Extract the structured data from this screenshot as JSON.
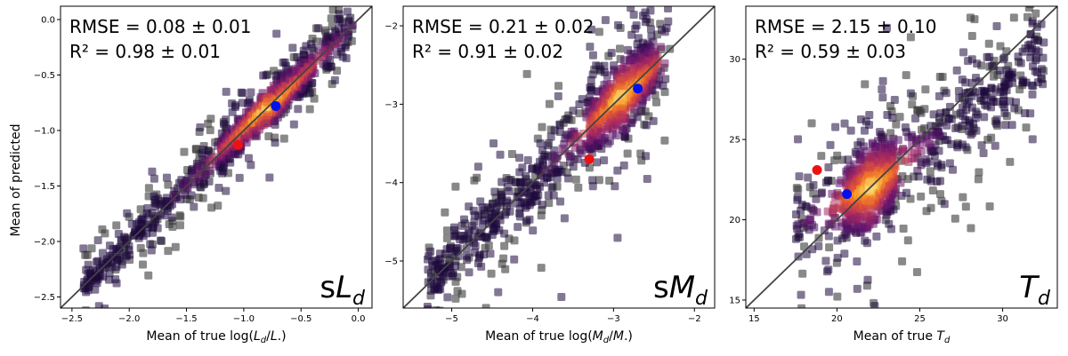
{
  "figure": {
    "ylabel": "Mean of predicted"
  },
  "chart_data": [
    {
      "type": "scatter",
      "panel_label": "sL",
      "panel_sub": "d",
      "xlabel_prefix": "Mean of true log(",
      "xlabel_math": "L",
      "xlabel_sub": "d",
      "xlabel_rest": "/L",
      "xlabel_suffix": ".)",
      "ylabel": "Mean of predicted",
      "xlim": [
        -2.6,
        0.12
      ],
      "ylim": [
        -2.6,
        0.12
      ],
      "xticks": [
        -2.5,
        -2.0,
        -1.5,
        -1.0,
        -0.5,
        0.0
      ],
      "xtick_labels": [
        "−2.5",
        "−2.0",
        "−1.5",
        "−1.0",
        "−0.5",
        "0.0"
      ],
      "yticks": [
        -2.5,
        -2.0,
        -1.5,
        -1.0,
        -0.5,
        0.0
      ],
      "ytick_labels": [
        "−2.5",
        "−2.0",
        "−1.5",
        "−1.0",
        "−0.5",
        "0.0"
      ],
      "rmse_text": "RMSE = 0.08 ± 0.01",
      "r2_text": "R² = 0.98 ± 0.01",
      "diagonal": "y = x",
      "cloud": {
        "x_range": [
          -2.4,
          -0.05
        ],
        "y_center_offset": 0.0,
        "spread": 0.08,
        "dense_x": [
          -1.2,
          -0.4
        ]
      },
      "highlight": [
        {
          "name": "blue",
          "color": "#0011ee",
          "x": -0.72,
          "y": -0.78
        },
        {
          "name": "red",
          "color": "#ee1111",
          "x": -1.05,
          "y": -1.13
        }
      ]
    },
    {
      "type": "scatter",
      "panel_label": "sM",
      "panel_sub": "d",
      "xlabel_prefix": "Mean of true log(",
      "xlabel_math": "M",
      "xlabel_sub": "d",
      "xlabel_rest": "/M",
      "xlabel_suffix": ".)",
      "xlim": [
        -5.6,
        -1.75
      ],
      "ylim": [
        -5.6,
        -1.75
      ],
      "xticks": [
        -5,
        -4,
        -3,
        -2
      ],
      "xtick_labels": [
        "−5",
        "−4",
        "−3",
        "−2"
      ],
      "yticks": [
        -5,
        -4,
        -3,
        -2
      ],
      "ytick_labels": [
        "−5",
        "−4",
        "−3",
        "−2"
      ],
      "rmse_text": "RMSE = 0.21 ± 0.02",
      "r2_text": "R² = 0.91 ± 0.02",
      "diagonal": "y = x",
      "cloud": {
        "x_range": [
          -5.3,
          -2.3
        ],
        "y_center_offset": 0.0,
        "spread": 0.2,
        "dense_x": [
          -3.3,
          -2.5
        ]
      },
      "highlight": [
        {
          "name": "blue",
          "color": "#0011ee",
          "x": -2.7,
          "y": -2.8
        },
        {
          "name": "red",
          "color": "#ee1111",
          "x": -3.3,
          "y": -3.7
        }
      ]
    },
    {
      "type": "scatter",
      "panel_label": "T",
      "panel_sub": "d",
      "xlabel_prefix": "Mean of true ",
      "xlabel_math": "T",
      "xlabel_sub": "d",
      "xlabel_rest": "",
      "xlabel_suffix": "",
      "xlim": [
        14.5,
        33.3
      ],
      "ylim": [
        14.5,
        33.3
      ],
      "xticks": [
        15,
        20,
        25,
        30
      ],
      "xtick_labels": [
        "15",
        "20",
        "25",
        "30"
      ],
      "yticks": [
        15,
        20,
        25,
        30
      ],
      "ytick_labels": [
        "15",
        "20",
        "25",
        "30"
      ],
      "rmse_text": "RMSE = 2.15 ± 0.10",
      "r2_text": "R² = 0.59 ± 0.03",
      "diagonal": "y = x",
      "cloud": {
        "x_range": [
          17.5,
          32.5
        ],
        "y_center_offset": 0.0,
        "spread": 1.2,
        "dense_x": [
          20.5,
          23.5
        ],
        "flatten": 0.55,
        "pivot": 22
      },
      "highlight": [
        {
          "name": "blue",
          "color": "#0011ee",
          "x": 20.6,
          "y": 21.6
        },
        {
          "name": "red",
          "color": "#ee1111",
          "x": 18.8,
          "y": 23.1
        }
      ]
    }
  ]
}
